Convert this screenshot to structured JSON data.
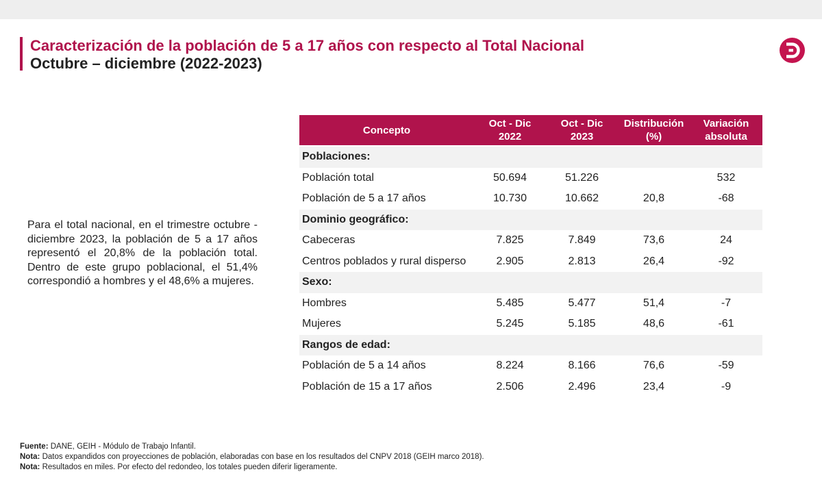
{
  "title": {
    "line1": "Caracterización de la población de 5 a 17 años con respecto al Total Nacional",
    "line2": "Octubre – diciembre (2022-2023)"
  },
  "summary": "Para el total nacional, en el trimestre octubre - diciembre 2023, la población de 5 a 17 años representó el 20,8% de la población total. Dentro de este grupo poblacional, el 51,4% correspondió a hombres y el 48,6% a mujeres.",
  "table": {
    "headers": [
      "Concepto",
      "Oct - Dic\n2022",
      "Oct - Dic\n2023",
      "Distribución\n(%)",
      "Variación\nabsoluta"
    ],
    "rows": [
      {
        "group": "Poblaciones:"
      },
      {
        "concept": "Población total",
        "v2022": "50.694",
        "v2023": "51.226",
        "dist": "",
        "var": "532"
      },
      {
        "concept": "Población de 5 a 17 años",
        "v2022": "10.730",
        "v2023": "10.662",
        "dist": "20,8",
        "var": "-68"
      },
      {
        "group": "Dominio geográfico:"
      },
      {
        "concept": "Cabeceras",
        "v2022": "7.825",
        "v2023": "7.849",
        "dist": "73,6",
        "var": "24"
      },
      {
        "concept": "Centros poblados y rural disperso",
        "v2022": "2.905",
        "v2023": "2.813",
        "dist": "26,4",
        "var": "-92"
      },
      {
        "group": "Sexo:"
      },
      {
        "concept": "Hombres",
        "v2022": "5.485",
        "v2023": "5.477",
        "dist": "51,4",
        "var": "-7"
      },
      {
        "concept": "Mujeres",
        "v2022": "5.245",
        "v2023": "5.185",
        "dist": "48,6",
        "var": "-61"
      },
      {
        "group": "Rangos de edad:"
      },
      {
        "concept": "Población de 5 a 14 años",
        "v2022": "8.224",
        "v2023": "8.166",
        "dist": "76,6",
        "var": "-59"
      },
      {
        "concept": "Población de 15 a 17 años",
        "v2022": "2.506",
        "v2023": "2.496",
        "dist": "23,4",
        "var": "-9"
      }
    ]
  },
  "footer": {
    "fuente_label": "Fuente:",
    "fuente_text": " DANE, GEIH - Módulo de Trabajo Infantil.",
    "nota1_label": "Nota:",
    "nota1_text": " Datos expandidos con proyecciones de población, elaboradas con base en los resultados del CNPV 2018 (GEIH marco 2018).",
    "nota2_label": "Nota:",
    "nota2_text": " Resultados en miles. Por efecto del redondeo, los totales pueden diferir ligeramente."
  },
  "colors": {
    "accent": "#b0134c",
    "logo": "#c4144f",
    "row_shade": "#f2f2f2"
  },
  "icons": {
    "logo": "dane-logo-icon"
  }
}
